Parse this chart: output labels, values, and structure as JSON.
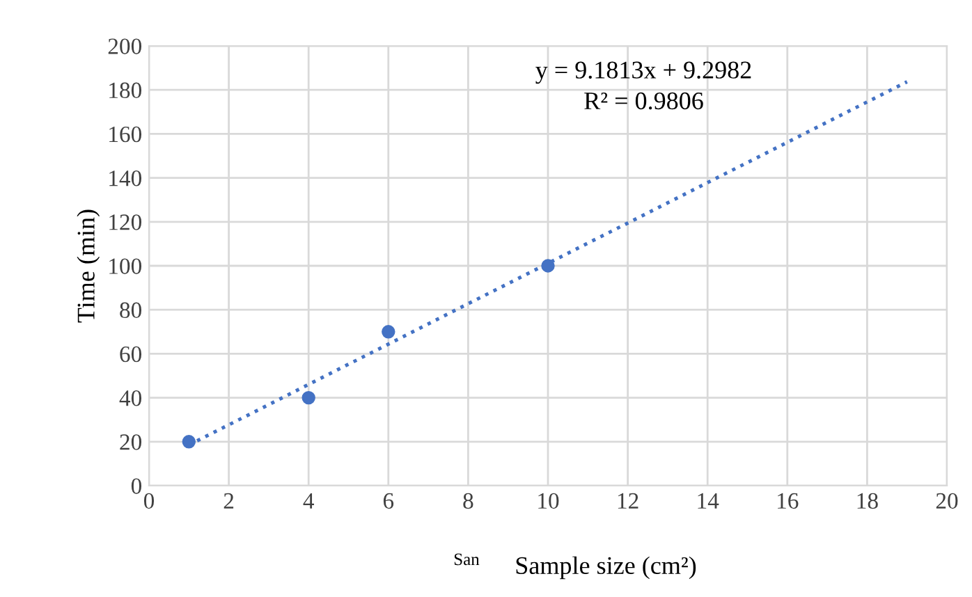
{
  "chart_data": {
    "type": "scatter",
    "xlabel": "Sample size (cm²)",
    "ylabel": "Time (min)",
    "series": [
      {
        "color": "#4472c4",
        "x": [
          1,
          4,
          6,
          10
        ],
        "values": [
          20,
          40,
          70,
          100
        ],
        "marker": "circle"
      },
      {
        "type": "line",
        "color": "#4472c4",
        "x": [
          1,
          19
        ],
        "values": [
          18.5,
          183.7
        ],
        "line_style": "dotted",
        "marker": "none"
      }
    ],
    "xlim": [
      0,
      20
    ],
    "xticks": [
      0,
      2,
      4,
      6,
      8,
      10,
      12,
      14,
      16,
      18,
      20
    ],
    "ylim": [
      0,
      200
    ],
    "yticks": [
      0,
      20,
      40,
      60,
      80,
      100,
      120,
      140,
      160,
      180,
      200
    ],
    "grid": true,
    "annotations": [
      "y = 9.1813x + 9.2982",
      "R² = 0.9806",
      "San"
    ]
  }
}
